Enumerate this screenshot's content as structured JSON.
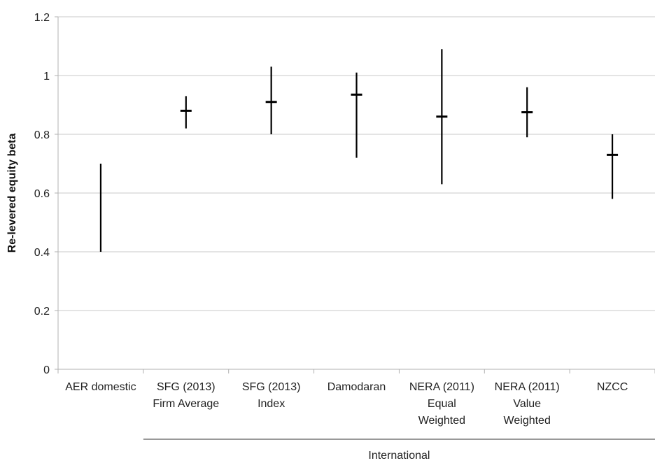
{
  "chart_data": {
    "type": "range",
    "ylabel": "Re-levered equity beta",
    "xlabel": "",
    "ylim": [
      0,
      1.2
    ],
    "yticks": [
      "0",
      "0.2",
      "0.4",
      "0.6",
      "0.8",
      "1",
      "1.2"
    ],
    "ytick_values": [
      0,
      0.2,
      0.4,
      0.6,
      0.8,
      1,
      1.2
    ],
    "grid": true,
    "categories": [
      [
        "AER domestic"
      ],
      [
        "SFG (2013)",
        "Firm Average"
      ],
      [
        "SFG (2013)",
        "Index"
      ],
      [
        "Damodaran"
      ],
      [
        "NERA (2011)",
        "Equal",
        "Weighted"
      ],
      [
        "NERA (2011)",
        "Value",
        "Weighted"
      ],
      [
        "NZCC"
      ]
    ],
    "ranges": [
      {
        "low": 0.4,
        "high": 0.7,
        "point": null
      },
      {
        "low": 0.82,
        "high": 0.93,
        "point": 0.88
      },
      {
        "low": 0.8,
        "high": 1.03,
        "point": 0.91
      },
      {
        "low": 0.72,
        "high": 1.01,
        "point": 0.935
      },
      {
        "low": 0.63,
        "high": 1.09,
        "point": 0.86
      },
      {
        "low": 0.79,
        "high": 0.96,
        "point": 0.875
      },
      {
        "low": 0.58,
        "high": 0.8,
        "point": 0.73
      }
    ],
    "group_label": "International",
    "group_categories": [
      1,
      6
    ],
    "colors": {
      "marks": "#000000",
      "grid": "#c8c8c8",
      "axis": "#b0b0b0"
    }
  }
}
